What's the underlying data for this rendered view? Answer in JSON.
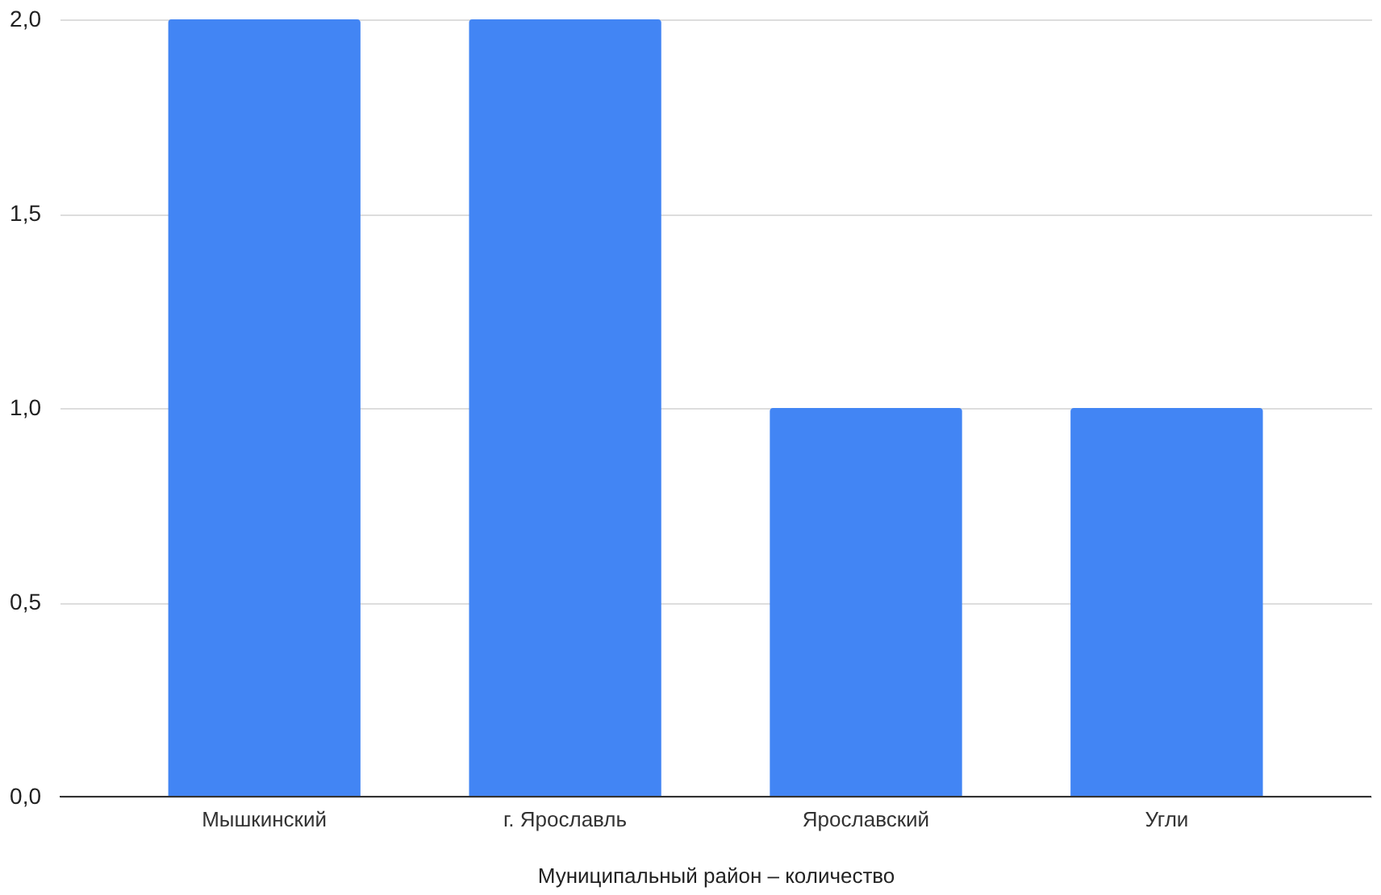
{
  "chart_data": {
    "type": "bar",
    "xlabel": "Муниципальный район  – количество",
    "categories": [
      "Мышкинский",
      "г. Ярославль",
      "Ярославский",
      "Угли"
    ],
    "values": [
      2,
      2,
      1,
      1
    ],
    "color": "#4285f4",
    "ylim": [
      0,
      2
    ],
    "yticks": [
      {
        "value": 0,
        "label": "0,0"
      },
      {
        "value": 0.5,
        "label": "0,5"
      },
      {
        "value": 1,
        "label": "1,0"
      },
      {
        "value": 1.5,
        "label": "1,5"
      },
      {
        "value": 2,
        "label": "2,0"
      }
    ],
    "grid": "y"
  }
}
